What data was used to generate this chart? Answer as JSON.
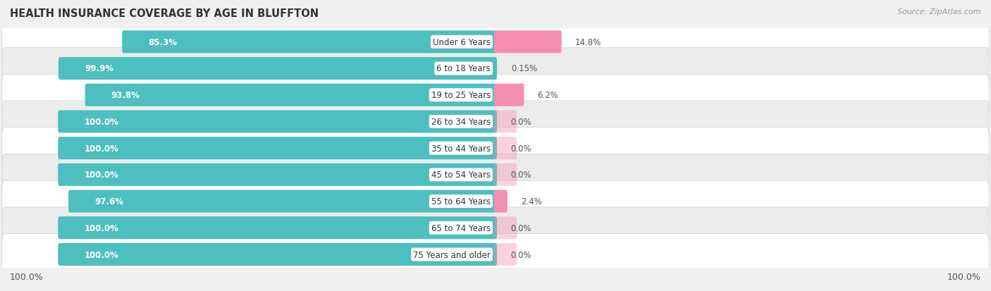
{
  "title": "HEALTH INSURANCE COVERAGE BY AGE IN BLUFFTON",
  "source": "Source: ZipAtlas.com",
  "categories": [
    "Under 6 Years",
    "6 to 18 Years",
    "19 to 25 Years",
    "26 to 34 Years",
    "35 to 44 Years",
    "45 to 54 Years",
    "55 to 64 Years",
    "65 to 74 Years",
    "75 Years and older"
  ],
  "with_coverage": [
    85.3,
    99.9,
    93.8,
    100.0,
    100.0,
    100.0,
    97.6,
    100.0,
    100.0
  ],
  "without_coverage": [
    14.8,
    0.15,
    6.2,
    0.0,
    0.0,
    0.0,
    2.4,
    0.0,
    0.0
  ],
  "with_coverage_labels": [
    "85.3%",
    "99.9%",
    "93.8%",
    "100.0%",
    "100.0%",
    "100.0%",
    "97.6%",
    "100.0%",
    "100.0%"
  ],
  "without_coverage_labels": [
    "14.8%",
    "0.15%",
    "6.2%",
    "0.0%",
    "0.0%",
    "0.0%",
    "2.4%",
    "0.0%",
    "0.0%"
  ],
  "color_with": "#4DBFBF",
  "color_without": "#F48FB1",
  "bg_color": "#f0f0f0",
  "title_fontsize": 10.5,
  "label_fontsize": 8.5,
  "bar_label_fontsize": 8.5,
  "legend_fontsize": 9,
  "source_fontsize": 8
}
